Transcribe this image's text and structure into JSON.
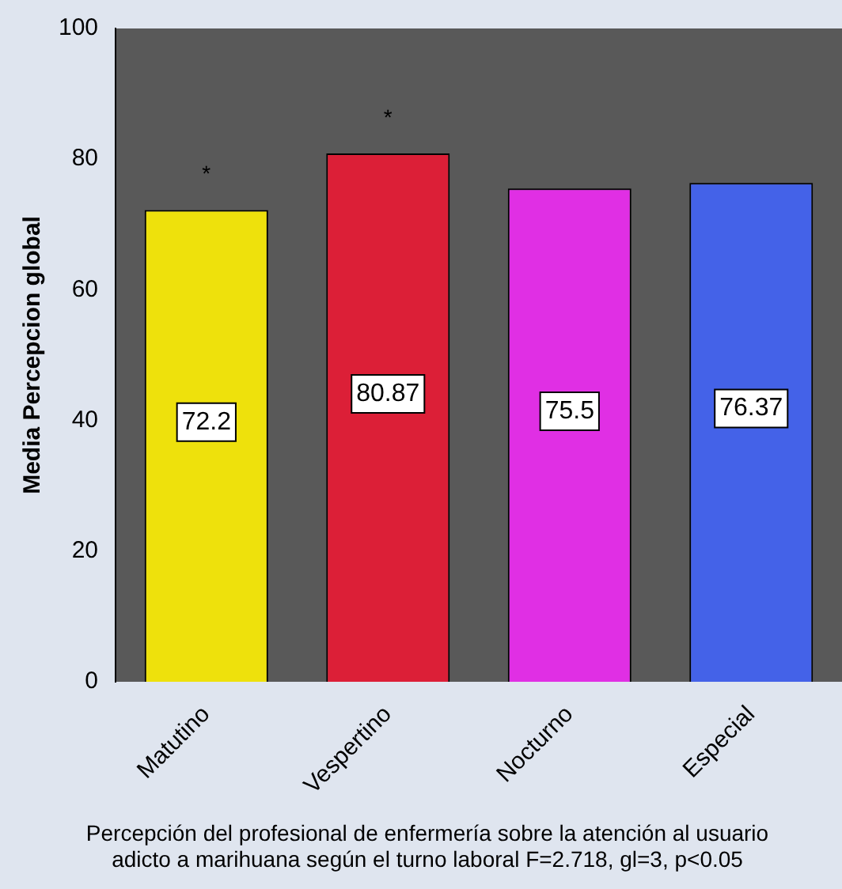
{
  "chart_data": {
    "type": "bar",
    "categories": [
      "Matutino",
      "Vespertino",
      "Nocturno",
      "Especial"
    ],
    "values": [
      72.2,
      80.87,
      75.5,
      76.37
    ],
    "colors": [
      "#eee10c",
      "#dc1f37",
      "#e02fe4",
      "#4462e8"
    ],
    "ylim": [
      0,
      100
    ],
    "yticks": [
      0,
      20,
      40,
      60,
      80,
      100
    ],
    "ylabel": "Media Percepcion global",
    "xlabel": "Percepción del profesional de enfermería sobre la atención al usuario adicto a marihuana según el turno laboral F=2.718, gl=3, p<0.05",
    "data_labels": true,
    "annotations": [
      "*",
      "*"
    ]
  }
}
